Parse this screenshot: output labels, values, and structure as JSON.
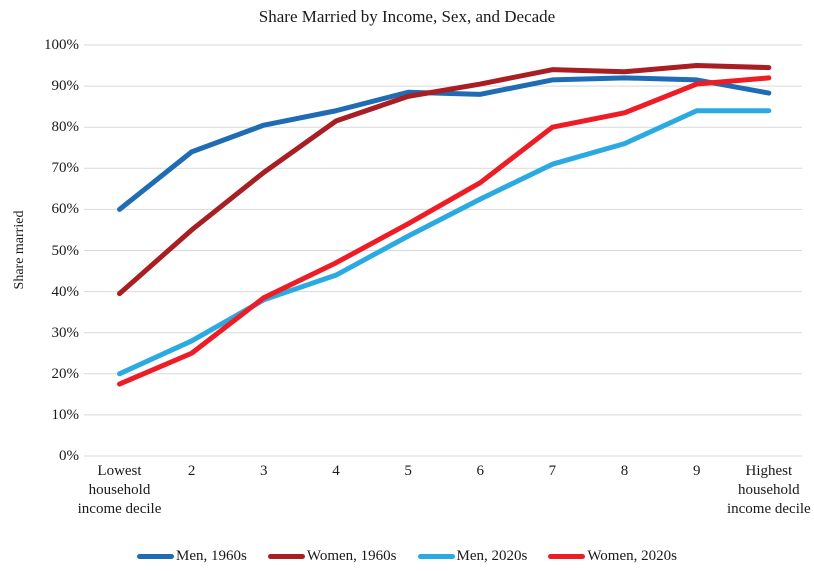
{
  "chart_data": {
    "type": "line",
    "title": "Share Married by Income, Sex, and Decade",
    "xlabel": "",
    "ylabel": "Share married",
    "ylim": [
      0,
      100
    ],
    "ytick_step": 10,
    "ytick_labels": [
      "0%",
      "10%",
      "20%",
      "30%",
      "40%",
      "50%",
      "60%",
      "70%",
      "80%",
      "90%",
      "100%"
    ],
    "grid": true,
    "legend_position": "bottom",
    "categories": [
      "Lowest household income decile",
      "2",
      "3",
      "4",
      "5",
      "6",
      "7",
      "8",
      "9",
      "Highest household income decile"
    ],
    "series": [
      {
        "name": "Men, 1960s",
        "color": "#1f6cb4",
        "values": [
          60,
          74,
          80.5,
          84,
          88.5,
          88,
          91.5,
          92,
          91.5,
          88.3
        ]
      },
      {
        "name": "Women, 1960s",
        "color": "#a81e22",
        "values": [
          39.5,
          55,
          69,
          81.5,
          87.5,
          90.5,
          94,
          93.5,
          95,
          94.5
        ]
      },
      {
        "name": "Men, 2020s",
        "color": "#2baae2",
        "values": [
          20,
          28,
          38,
          44,
          53.5,
          62.5,
          71,
          76,
          84,
          84
        ]
      },
      {
        "name": "Women, 2020s",
        "color": "#ee1c25",
        "values": [
          17.5,
          25,
          38.5,
          47,
          56.5,
          66.5,
          80,
          83.5,
          90.5,
          92
        ]
      }
    ],
    "style": {
      "gridline_color": "#d9d9d9",
      "line_width": 5
    }
  }
}
